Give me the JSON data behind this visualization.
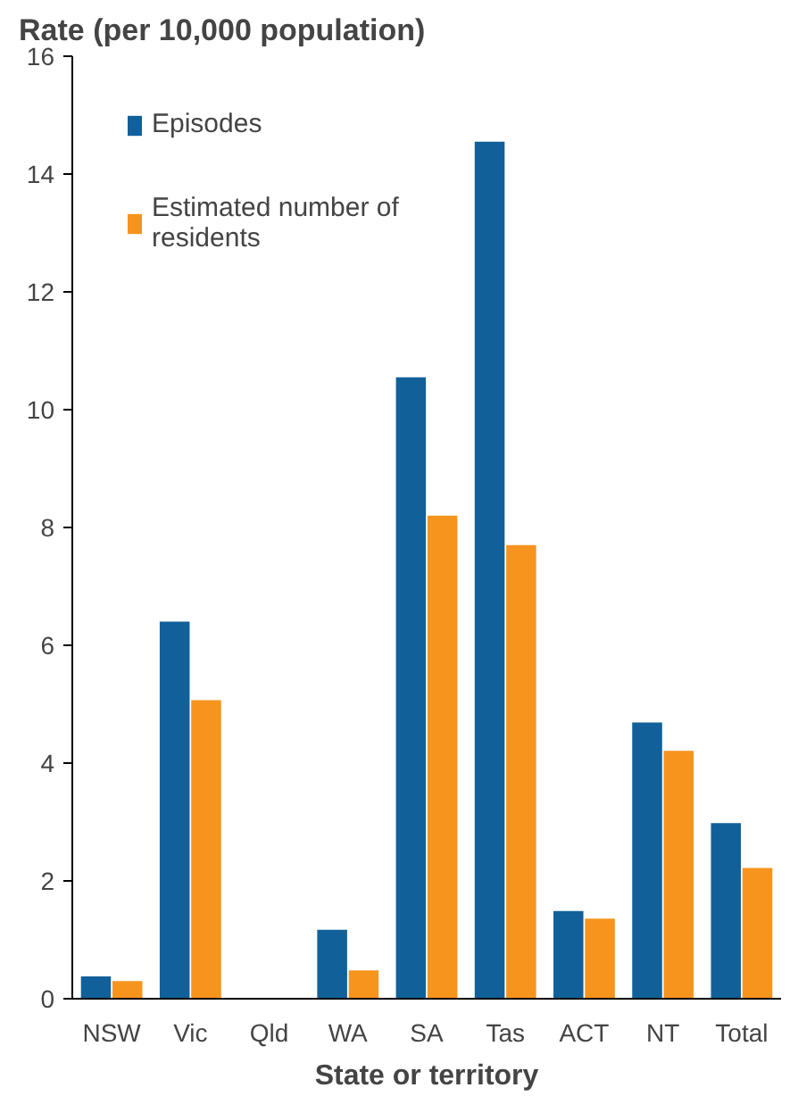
{
  "chart_data": {
    "type": "bar",
    "title": "Rate (per 10,000 population)",
    "xlabel": "State or territory",
    "categories": [
      "NSW",
      "Vic",
      "Qld",
      "WA",
      "SA",
      "Tas",
      "ACT",
      "NT",
      "Total"
    ],
    "series": [
      {
        "name": "Episodes",
        "color": "#11609a",
        "values": [
          0.38,
          6.4,
          0,
          1.17,
          10.55,
          14.55,
          1.49,
          4.69,
          2.98
        ]
      },
      {
        "name": "Estimated number of residents",
        "color": "#f7941d",
        "values": [
          0.3,
          5.07,
          0,
          0.48,
          8.2,
          7.7,
          1.36,
          4.21,
          2.22
        ]
      }
    ],
    "ylim": [
      0,
      16
    ],
    "yticks": [
      0,
      2,
      4,
      6,
      8,
      10,
      12,
      14,
      16
    ],
    "grid": false,
    "legend": "top left"
  }
}
